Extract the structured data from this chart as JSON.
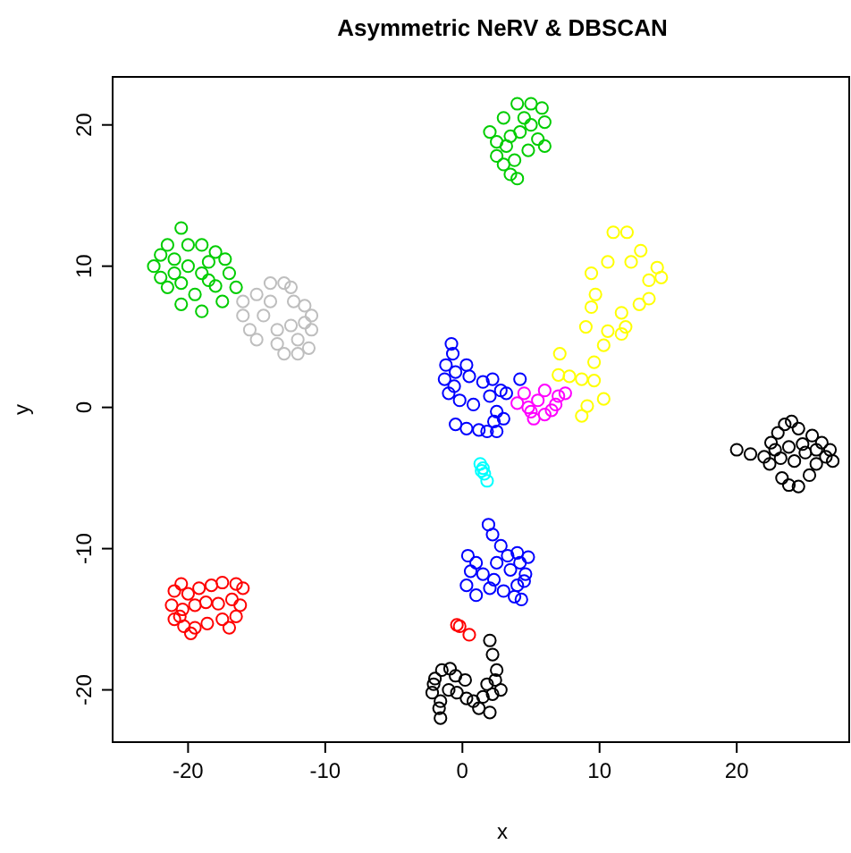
{
  "chart_data": {
    "type": "scatter",
    "title": "Asymmetric NeRV & DBSCAN",
    "xlabel": "x",
    "ylabel": "y",
    "xlim": [
      -25.5,
      28.2
    ],
    "ylim": [
      -23.7,
      23.4
    ],
    "xticks": [
      -20,
      -10,
      0,
      10,
      20
    ],
    "yticks": [
      -20,
      -10,
      0,
      10,
      20
    ],
    "marker": "circle",
    "series": [
      {
        "color": "#00cd00",
        "x": [
          -21.5,
          -20.5,
          -19,
          -18,
          -17.3,
          -22.5,
          -22,
          -21,
          -20,
          -19,
          -18.5,
          -17,
          -16.5,
          -21.5,
          -20.5,
          -19.5,
          -18,
          -20.5,
          -19,
          -17.5,
          -22,
          -20,
          -18.5,
          -21
        ],
        "values": [
          11.5,
          12.7,
          11.5,
          11,
          10.5,
          10,
          9.2,
          10.5,
          10,
          9.5,
          10.3,
          9.5,
          8.5,
          8.5,
          8.8,
          8,
          8.6,
          7.3,
          6.8,
          7.5,
          10.8,
          11.5,
          9,
          9.5
        ]
      },
      {
        "color": "#bebebe",
        "x": [
          -14,
          -13,
          -12.5,
          -15,
          -16,
          -16,
          -15.5,
          -15,
          -14.5,
          -13.5,
          -13,
          -12,
          -11.2,
          -11,
          -11,
          -11.5,
          -12.3,
          -12.5,
          -13.5,
          -14,
          -12,
          -11.5
        ],
        "values": [
          8.8,
          8.8,
          8.5,
          8,
          7.5,
          6.5,
          5.5,
          4.8,
          6.5,
          4.5,
          3.8,
          3.8,
          4.2,
          5.5,
          6.5,
          7.2,
          7.5,
          5.8,
          5.5,
          7.5,
          4.8,
          6
        ]
      },
      {
        "color": "#00cd00",
        "x": [
          4,
          5,
          5.8,
          4.5,
          6,
          3,
          2,
          2.5,
          3.5,
          4.2,
          5.5,
          6,
          4.8,
          2.5,
          3,
          3.8,
          3.5,
          4,
          3.2,
          5
        ],
        "values": [
          21.5,
          21.5,
          21.2,
          20.5,
          20.2,
          20.5,
          19.5,
          18.8,
          19.2,
          19.5,
          19,
          18.5,
          18.2,
          17.8,
          17.2,
          17.5,
          16.5,
          16.2,
          18.5,
          20
        ]
      },
      {
        "color": "#ffff00",
        "x": [
          11,
          12,
          13,
          14.2,
          14.5,
          9.4,
          10.6,
          12.3,
          13.6,
          9.7,
          9.4,
          13.6,
          12.9,
          11.6,
          9,
          10.6,
          11.9,
          10.3,
          9.6,
          7.1,
          7,
          8.7,
          9.6,
          10.3,
          9.1,
          8.7,
          7.8,
          11.6
        ],
        "values": [
          12.4,
          12.4,
          11.1,
          9.9,
          9.2,
          9.5,
          10.3,
          10.3,
          9,
          8,
          7.1,
          7.7,
          7.3,
          6.7,
          5.7,
          5.4,
          5.7,
          4.4,
          3.2,
          3.8,
          2.3,
          2,
          1.9,
          0.6,
          0.1,
          -0.6,
          2.2,
          5.2
        ]
      },
      {
        "color": "#ff00ff",
        "x": [
          4,
          4.5,
          5,
          5.5,
          6,
          6.5,
          7,
          7.5,
          5.2,
          6,
          4.8,
          6.8
        ],
        "values": [
          0.3,
          1,
          -0.3,
          0.5,
          1.2,
          -0.2,
          0.8,
          1,
          -0.8,
          -0.5,
          0,
          0.2
        ]
      },
      {
        "color": "#0000ff",
        "x": [
          -0.8,
          -0.7,
          -1.2,
          -0.5,
          -1.3,
          -0.6,
          0.3,
          0.5,
          1.5,
          2.2,
          2.8,
          3.2,
          4.2,
          2,
          -0.2,
          0.8,
          2.5,
          3,
          0.3,
          -0.5,
          1.2,
          1.8,
          2.5,
          2.3,
          -1
        ],
        "values": [
          4.5,
          3.8,
          3,
          2.5,
          2,
          1.5,
          3,
          2.2,
          1.8,
          2,
          1.2,
          1,
          2,
          0.8,
          0.5,
          0.2,
          -0.3,
          -0.8,
          -1.5,
          -1.2,
          -1.6,
          -1.7,
          -1.7,
          -1,
          1
        ]
      },
      {
        "color": "#00ffff",
        "x": [
          1.3,
          1.5,
          1.6,
          1.8,
          1.4
        ],
        "values": [
          -4,
          -4.3,
          -4.7,
          -5.2,
          -4.5
        ]
      },
      {
        "color": "#0000ff",
        "x": [
          1.9,
          2.2,
          2.8,
          3.3,
          0.4,
          1,
          0.6,
          1.5,
          2.3,
          0.3,
          1,
          2,
          3,
          3.8,
          4,
          4.6,
          4.2,
          4.8,
          4,
          4.5,
          3.5,
          2.5,
          4.3
        ],
        "values": [
          -8.3,
          -9,
          -9.8,
          -10.5,
          -10.5,
          -11,
          -11.6,
          -11.8,
          -12.2,
          -12.6,
          -13.3,
          -12.8,
          -13,
          -13.4,
          -12.6,
          -11.8,
          -11,
          -10.6,
          -10.3,
          -12.3,
          -11.5,
          -11,
          -13.6
        ]
      },
      {
        "color": "#ff0000",
        "x": [
          -21,
          -20.5,
          -20,
          -19.2,
          -18.3,
          -17.5,
          -16.5,
          -16,
          -21.2,
          -20.4,
          -19.5,
          -18.7,
          -17.8,
          -16.8,
          -21,
          -20.3,
          -19.5,
          -18.6,
          -17.5,
          -16.5,
          -17,
          -19.8,
          -20.6,
          -16.2,
          -0.4,
          -0.2,
          0.5
        ],
        "values": [
          -13,
          -12.5,
          -13.2,
          -12.8,
          -12.6,
          -12.4,
          -12.5,
          -12.8,
          -14,
          -14.3,
          -14,
          -13.8,
          -13.9,
          -13.6,
          -15,
          -15.5,
          -15.6,
          -15.3,
          -15,
          -14.8,
          -15.6,
          -16,
          -14.8,
          -14,
          -15.4,
          -15.5,
          -16.1
        ]
      },
      {
        "color": "#000000",
        "x": [
          2,
          2.2,
          -1.5,
          -2,
          -0.9,
          -2.2,
          -1.6,
          -0.4,
          0.3,
          0.8,
          1.5,
          2.2,
          2.8,
          2.4,
          1.8,
          1.2,
          2,
          -1,
          -0.5,
          2.5,
          -1.7,
          -1.6,
          0.2,
          -2.1
        ],
        "values": [
          -16.5,
          -17.5,
          -18.6,
          -19.2,
          -18.5,
          -20.2,
          -20.8,
          -20.2,
          -20.6,
          -20.8,
          -20.5,
          -20.3,
          -20,
          -19.3,
          -19.6,
          -21.3,
          -21.6,
          -20,
          -19,
          -18.6,
          -21.3,
          -22,
          -19.3,
          -19.6
        ]
      },
      {
        "color": "#000000",
        "x": [
          20,
          21,
          22,
          22.5,
          23,
          23.5,
          24,
          24.5,
          25.5,
          26.2,
          26.8,
          27,
          26.5,
          25.8,
          25,
          24.2,
          23.2,
          22.4,
          23.3,
          23.8,
          24.5,
          25.3,
          25.8,
          24.8,
          23.8,
          22.8
        ],
        "values": [
          -3,
          -3.3,
          -3.5,
          -2.5,
          -1.8,
          -1.2,
          -1,
          -1.5,
          -2,
          -2.5,
          -3,
          -3.8,
          -3.5,
          -3,
          -3.2,
          -3.8,
          -3.6,
          -4,
          -5,
          -5.5,
          -5.6,
          -4.8,
          -4,
          -2.6,
          -2.8,
          -3
        ]
      }
    ]
  }
}
